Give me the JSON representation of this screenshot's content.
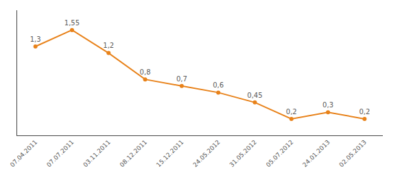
{
  "chart_data": {
    "type": "line",
    "categories": [
      "07.04.2011",
      "07.07.2011",
      "03.11.2011",
      "08.12.2011",
      "15.12.2011",
      "24.05.2012",
      "31.05.2012",
      "05.07.2012",
      "24.01.2013",
      "02.05.2013"
    ],
    "values": [
      1.3,
      1.55,
      1.2,
      0.8,
      0.7,
      0.6,
      0.45,
      0.2,
      0.3,
      0.2
    ],
    "value_labels": [
      "1,3",
      "1,55",
      "1,2",
      "0,8",
      "0,7",
      "0,6",
      "0,45",
      "0,2",
      "0,3",
      "0,2"
    ],
    "data_labels": true,
    "color": "#E8821A",
    "marker": "circle",
    "ylim": [
      -0.05,
      1.85
    ],
    "grid": false,
    "tick_labels": "x"
  }
}
